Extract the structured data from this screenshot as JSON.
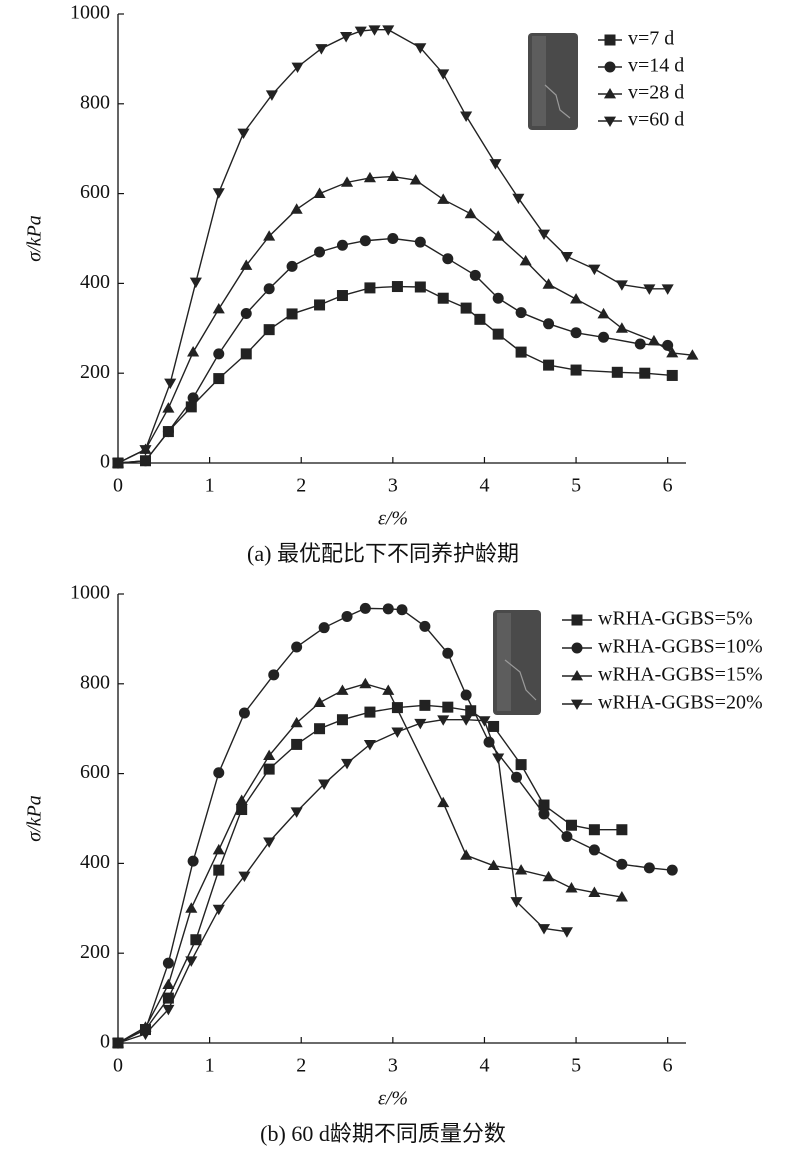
{
  "chart_data": [
    {
      "type": "line",
      "xlabel": "ε/%",
      "ylabel": "σ/kPa",
      "caption": "(a) 最优配比下不同养护龄期",
      "xlim": [
        0,
        6.2
      ],
      "ylim": [
        0,
        1000
      ],
      "xticks": [
        0,
        1,
        2,
        3,
        4,
        5,
        6
      ],
      "yticks": [
        0,
        200,
        400,
        600,
        800,
        1000
      ],
      "legend": "upper right",
      "series": [
        {
          "name": "v=7 d",
          "color": "#222222",
          "marker": "square",
          "x": [
            0,
            0.3,
            0.55,
            0.8,
            1.1,
            1.4,
            1.65,
            1.9,
            2.2,
            2.45,
            2.75,
            3.05,
            3.3,
            3.55,
            3.8,
            3.95,
            4.15,
            4.4,
            4.7,
            5.0,
            5.45,
            5.75,
            6.05
          ],
          "values": [
            0,
            5,
            70,
            125,
            188,
            243,
            297,
            332,
            352,
            373,
            390,
            393,
            392,
            367,
            345,
            320,
            287,
            247,
            218,
            207,
            202,
            200,
            195
          ]
        },
        {
          "name": "v=14 d",
          "color": "#222222",
          "marker": "circle",
          "x": [
            0,
            0.3,
            0.55,
            0.82,
            1.1,
            1.4,
            1.65,
            1.9,
            2.2,
            2.45,
            2.7,
            3.0,
            3.3,
            3.6,
            3.9,
            4.15,
            4.4,
            4.7,
            5.0,
            5.3,
            5.7,
            6.0
          ],
          "values": [
            0,
            5,
            70,
            145,
            243,
            333,
            388,
            438,
            470,
            485,
            495,
            500,
            492,
            455,
            418,
            367,
            335,
            310,
            290,
            280,
            265,
            262
          ]
        },
        {
          "name": "v=28 d",
          "color": "#222222",
          "marker": "triangle-up",
          "x": [
            0,
            0.3,
            0.55,
            0.82,
            1.1,
            1.4,
            1.65,
            1.95,
            2.2,
            2.5,
            2.75,
            3.0,
            3.25,
            3.55,
            3.85,
            4.15,
            4.45,
            4.7,
            5.0,
            5.3,
            5.5,
            5.85,
            6.05,
            6.27
          ],
          "values": [
            0,
            30,
            122,
            247,
            343,
            440,
            505,
            565,
            600,
            625,
            635,
            638,
            630,
            587,
            555,
            505,
            450,
            398,
            365,
            332,
            300,
            272,
            245,
            240
          ]
        },
        {
          "name": "v=60 d",
          "color": "#222222",
          "marker": "triangle-down",
          "x": [
            0,
            0.3,
            0.57,
            0.85,
            1.1,
            1.37,
            1.68,
            1.96,
            2.22,
            2.49,
            2.65,
            2.8,
            2.95,
            3.3,
            3.55,
            3.8,
            4.12,
            4.37,
            4.65,
            4.9,
            5.2,
            5.5,
            5.8,
            6.0
          ],
          "values": [
            0,
            30,
            178,
            403,
            602,
            735,
            820,
            882,
            923,
            950,
            962,
            965,
            965,
            925,
            867,
            773,
            667,
            590,
            510,
            460,
            432,
            397,
            388,
            388
          ]
        }
      ]
    },
    {
      "type": "line",
      "xlabel": "ε/%",
      "ylabel": "σ/kPa",
      "caption": "(b) 60 d龄期不同质量分数",
      "xlim": [
        0,
        6.2
      ],
      "ylim": [
        0,
        1000
      ],
      "xticks": [
        0,
        1,
        2,
        3,
        4,
        5,
        6
      ],
      "yticks": [
        0,
        200,
        400,
        600,
        800,
        1000
      ],
      "legend": "upper right",
      "series": [
        {
          "name": "wRHA-GGBS=5%",
          "color": "#222222",
          "marker": "square",
          "x": [
            0,
            0.3,
            0.55,
            0.85,
            1.1,
            1.35,
            1.65,
            1.95,
            2.2,
            2.45,
            2.75,
            3.05,
            3.35,
            3.6,
            3.85,
            4.1,
            4.4,
            4.65,
            4.95,
            5.2,
            5.5
          ],
          "values": [
            0,
            30,
            100,
            230,
            385,
            520,
            610,
            665,
            700,
            720,
            737,
            747,
            752,
            748,
            740,
            705,
            620,
            530,
            485,
            475,
            475
          ]
        },
        {
          "name": "wRHA-GGBS=10%",
          "color": "#222222",
          "marker": "circle",
          "x": [
            0,
            0.3,
            0.55,
            0.82,
            1.1,
            1.38,
            1.7,
            1.95,
            2.25,
            2.5,
            2.7,
            2.95,
            3.1,
            3.35,
            3.6,
            3.8,
            4.05,
            4.35,
            4.65,
            4.9,
            5.2,
            5.5,
            5.8,
            6.05
          ],
          "values": [
            0,
            30,
            178,
            405,
            602,
            735,
            820,
            882,
            925,
            950,
            968,
            967,
            965,
            928,
            868,
            775,
            670,
            592,
            510,
            460,
            430,
            398,
            390,
            385
          ]
        },
        {
          "name": "wRHA-GGBS=15%",
          "color": "#222222",
          "marker": "triangle-up",
          "x": [
            0,
            0.3,
            0.55,
            0.8,
            1.1,
            1.35,
            1.65,
            1.95,
            2.2,
            2.45,
            2.7,
            2.95,
            3.55,
            3.8,
            4.1,
            4.4,
            4.7,
            4.95,
            5.2,
            5.5
          ],
          "values": [
            0,
            35,
            130,
            300,
            430,
            540,
            640,
            713,
            758,
            785,
            800,
            785,
            535,
            418,
            395,
            385,
            370,
            345,
            335,
            325
          ]
        },
        {
          "name": "wRHA-GGBS=20%",
          "color": "#222222",
          "marker": "triangle-down",
          "x": [
            0,
            0.3,
            0.55,
            0.8,
            1.1,
            1.38,
            1.65,
            1.95,
            2.25,
            2.5,
            2.75,
            3.05,
            3.3,
            3.55,
            3.8,
            4.0,
            4.15,
            4.35,
            4.65,
            4.9
          ],
          "values": [
            0,
            20,
            75,
            183,
            298,
            372,
            448,
            515,
            577,
            623,
            665,
            693,
            712,
            720,
            720,
            718,
            635,
            315,
            255,
            248
          ]
        }
      ]
    }
  ]
}
